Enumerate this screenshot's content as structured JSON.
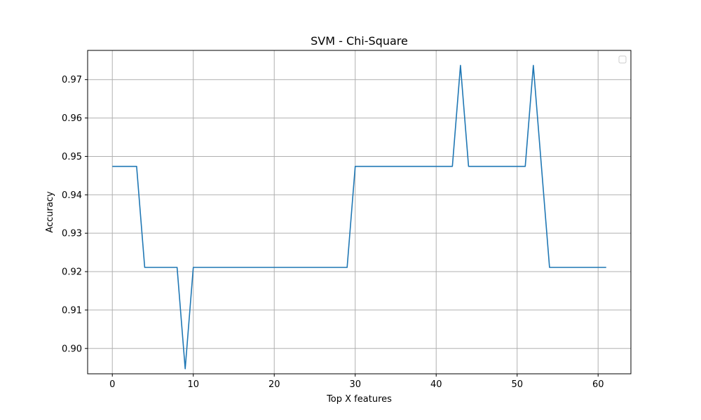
{
  "chart_data": {
    "type": "line",
    "title": "SVM - Chi-Square",
    "xlabel": "Top X features",
    "ylabel": "Accuracy",
    "xlim": [
      -3.05,
      64.05
    ],
    "ylim": [
      0.8934,
      0.9776
    ],
    "xticks": [
      0,
      10,
      20,
      30,
      40,
      50,
      60
    ],
    "yticks": [
      0.9,
      0.91,
      0.92,
      0.93,
      0.94,
      0.95,
      0.96,
      0.97
    ],
    "ytick_labels": [
      "0.90",
      "0.91",
      "0.92",
      "0.93",
      "0.94",
      "0.95",
      "0.96",
      "0.97"
    ],
    "grid": true,
    "legend": {
      "placement": "upper right",
      "entries": []
    },
    "series": [
      {
        "color": "#1f77b4",
        "x": [
          0,
          1,
          2,
          3,
          4,
          5,
          6,
          7,
          8,
          9,
          10,
          11,
          12,
          13,
          14,
          15,
          16,
          17,
          18,
          19,
          20,
          21,
          22,
          23,
          24,
          25,
          26,
          27,
          28,
          29,
          30,
          31,
          32,
          33,
          34,
          35,
          36,
          37,
          38,
          39,
          40,
          41,
          42,
          43,
          44,
          45,
          46,
          47,
          48,
          49,
          50,
          51,
          52,
          53,
          54,
          55,
          56,
          57,
          58,
          59,
          60,
          61
        ],
        "y": [
          0.9474,
          0.9474,
          0.9474,
          0.9474,
          0.9211,
          0.9211,
          0.9211,
          0.9211,
          0.9211,
          0.8947,
          0.9211,
          0.9211,
          0.9211,
          0.9211,
          0.9211,
          0.9211,
          0.9211,
          0.9211,
          0.9211,
          0.9211,
          0.9211,
          0.9211,
          0.9211,
          0.9211,
          0.9211,
          0.9211,
          0.9211,
          0.9211,
          0.9211,
          0.9211,
          0.9474,
          0.9474,
          0.9474,
          0.9474,
          0.9474,
          0.9474,
          0.9474,
          0.9474,
          0.9474,
          0.9474,
          0.9474,
          0.9474,
          0.9474,
          0.9737,
          0.9474,
          0.9474,
          0.9474,
          0.9474,
          0.9474,
          0.9474,
          0.9474,
          0.9474,
          0.9737,
          0.9474,
          0.9211,
          0.9211,
          0.9211,
          0.9211,
          0.9211,
          0.9211,
          0.9211,
          0.9211
        ]
      }
    ]
  }
}
